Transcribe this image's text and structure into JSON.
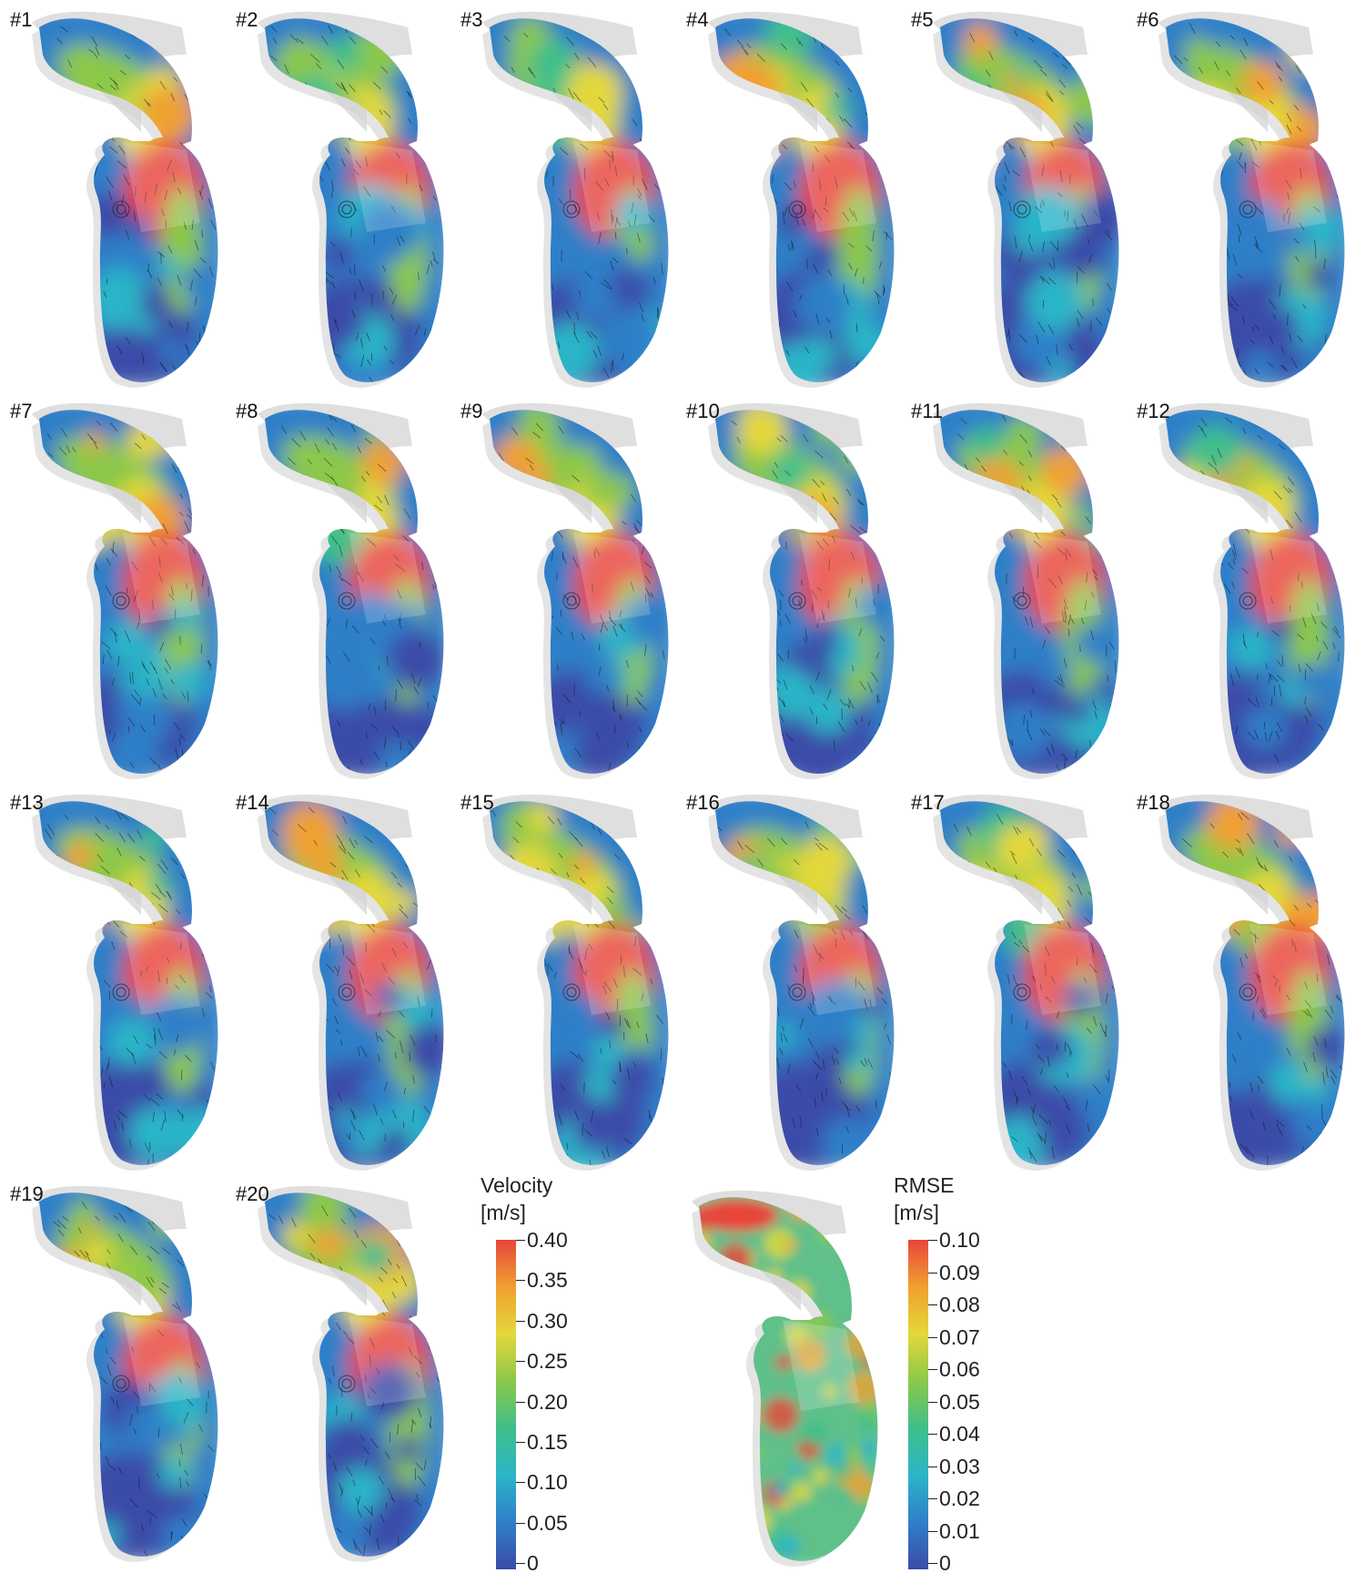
{
  "panels": [
    {
      "label": "#1"
    },
    {
      "label": "#2"
    },
    {
      "label": "#3"
    },
    {
      "label": "#4"
    },
    {
      "label": "#5"
    },
    {
      "label": "#6"
    },
    {
      "label": "#7"
    },
    {
      "label": "#8"
    },
    {
      "label": "#9"
    },
    {
      "label": "#10"
    },
    {
      "label": "#11"
    },
    {
      "label": "#12"
    },
    {
      "label": "#13"
    },
    {
      "label": "#14"
    },
    {
      "label": "#15"
    },
    {
      "label": "#16"
    },
    {
      "label": "#17"
    },
    {
      "label": "#18"
    },
    {
      "label": "#19"
    },
    {
      "label": "#20"
    }
  ],
  "velocity_colorbar": {
    "title": "Velocity",
    "unit": "[m/s]",
    "ticks": [
      "0.40",
      "0.35",
      "0.30",
      "0.25",
      "0.20",
      "0.15",
      "0.10",
      "0.05",
      "0"
    ]
  },
  "rmse_colorbar": {
    "title": "RMSE",
    "unit": "[m/s]",
    "ticks": [
      "0.10",
      "0.09",
      "0.08",
      "0.07",
      "0.06",
      "0.05",
      "0.04",
      "0.03",
      "0.02",
      "0.01",
      "0"
    ]
  },
  "colors": {
    "jet": [
      "#3b4ba8",
      "#2f7fc8",
      "#2bb5c8",
      "#3fbf8a",
      "#8bc84a",
      "#e3d83a",
      "#f0a030",
      "#e8453a"
    ],
    "background": "#ffffff",
    "ghost": "#d2d2d2"
  }
}
